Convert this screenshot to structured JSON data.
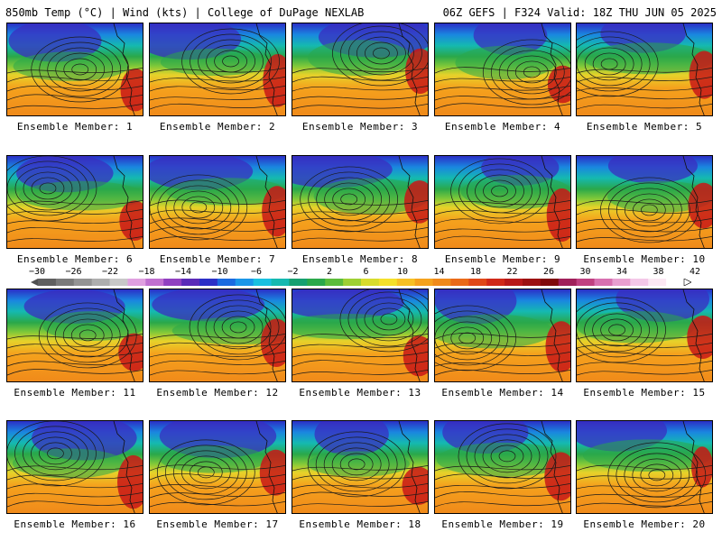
{
  "header": {
    "left": "850mb Temp (°C) | Wind (kts) | College of DuPage NEXLAB",
    "right": "06Z GEFS | F324 Valid: 18Z THU JUN 05 2025"
  },
  "panels": [
    {
      "label": "Ensemble Member: 1"
    },
    {
      "label": "Ensemble Member: 2"
    },
    {
      "label": "Ensemble Member: 3"
    },
    {
      "label": "Ensemble Member: 4"
    },
    {
      "label": "Ensemble Member: 5"
    },
    {
      "label": "Ensemble Member: 6"
    },
    {
      "label": "Ensemble Member: 7"
    },
    {
      "label": "Ensemble Member: 8"
    },
    {
      "label": "Ensemble Member: 9"
    },
    {
      "label": "Ensemble Member: 10"
    },
    {
      "label": "Ensemble Member: 11"
    },
    {
      "label": "Ensemble Member: 12"
    },
    {
      "label": "Ensemble Member: 13"
    },
    {
      "label": "Ensemble Member: 14"
    },
    {
      "label": "Ensemble Member: 15"
    },
    {
      "label": "Ensemble Member: 16"
    },
    {
      "label": "Ensemble Member: 17"
    },
    {
      "label": "Ensemble Member: 18"
    },
    {
      "label": "Ensemble Member: 19"
    },
    {
      "label": "Ensemble Member: 20"
    }
  ],
  "colorbar": {
    "ticks": [
      "−30",
      "−26",
      "−22",
      "−18",
      "−14",
      "−10",
      "−6",
      "−2",
      "2",
      "6",
      "10",
      "14",
      "18",
      "22",
      "26",
      "30",
      "34",
      "38",
      "42"
    ],
    "colors": [
      "#606060",
      "#7a7a7a",
      "#949494",
      "#aeaeae",
      "#c8c8c8",
      "#e0a0e0",
      "#c070d0",
      "#9040c0",
      "#5a2ab8",
      "#2b2fc7",
      "#1a6ae0",
      "#1a96e8",
      "#18c0e0",
      "#15b9b0",
      "#16a070",
      "#2aa84a",
      "#5cbc3a",
      "#9ed033",
      "#d8dc2c",
      "#f5e02a",
      "#f7c024",
      "#f5a21d",
      "#f08a1a",
      "#ea6a18",
      "#e04818",
      "#d02818",
      "#b81818",
      "#9c1010",
      "#800a0a",
      "#a0205a",
      "#c04080",
      "#d870b0",
      "#e8a0d0",
      "#f4c8e8",
      "#fce8f4",
      "#ffffff"
    ]
  }
}
